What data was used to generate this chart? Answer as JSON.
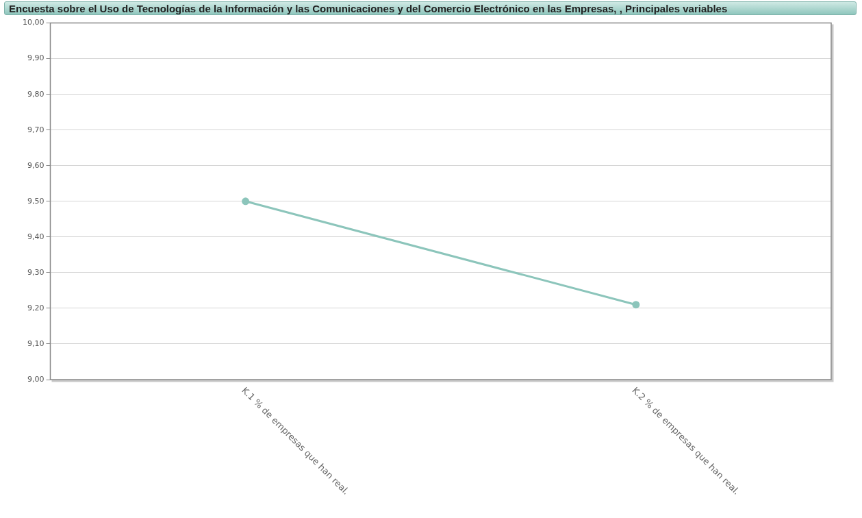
{
  "chart_data": {
    "type": "line",
    "title": "Encuesta sobre el Uso de Tecnologías de la Información y las Comunicaciones y del Comercio Electrónico en las Empresas, , Principales variables",
    "categories": [
      "K.1 % de empresas que han real.",
      "K.2 % de empresas que han real."
    ],
    "series": [
      {
        "color": "#8cc5bb",
        "values": [
          9.5,
          9.21
        ]
      }
    ],
    "ylim": [
      9,
      10
    ],
    "yticks": [
      {
        "value": 9,
        "label": "9,00"
      },
      {
        "value": 9.1,
        "label": "9,10"
      },
      {
        "value": 9.2,
        "label": "9,20"
      },
      {
        "value": 9.3,
        "label": "9,30"
      },
      {
        "value": 9.4,
        "label": "9,40"
      },
      {
        "value": 9.5,
        "label": "9,50"
      },
      {
        "value": 9.6,
        "label": "9,60"
      },
      {
        "value": 9.7,
        "label": "9,70"
      },
      {
        "value": 9.8,
        "label": "9,80"
      },
      {
        "value": 9.9,
        "label": "9,90"
      },
      {
        "value": 10,
        "label": "10,00"
      }
    ],
    "grid": "y",
    "legend": false,
    "marker": "circle",
    "line_style": "solid"
  }
}
